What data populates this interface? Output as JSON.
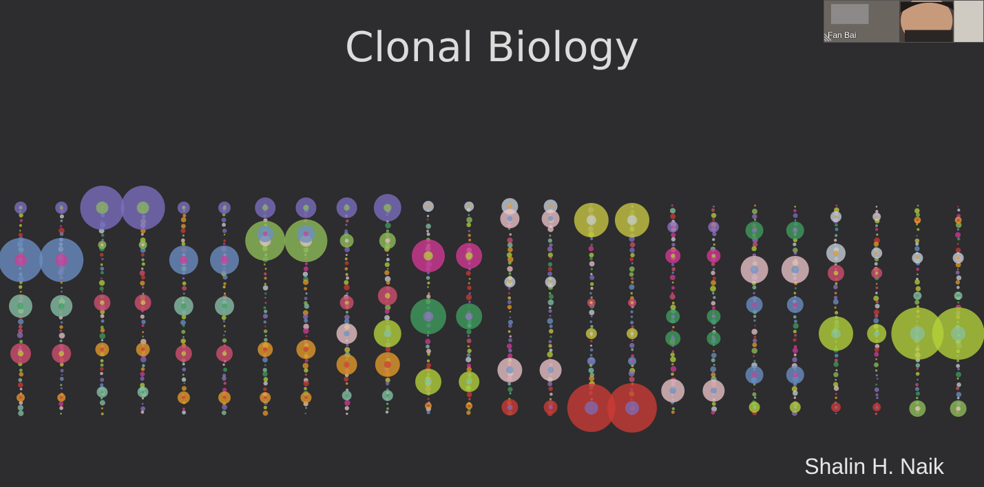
{
  "slide": {
    "title": "Clonal Biology",
    "author": "Shalin H. Naik"
  },
  "video": {
    "participant_name": "Fan Bai"
  },
  "icons": [
    "video-feed",
    "resize-grip-icon"
  ],
  "colors": {
    "background": "#2d2c2e",
    "text": "#dcdcdc",
    "palette": [
      "#7b6fc0",
      "#6a90c4",
      "#86c1a6",
      "#d2506f",
      "#e49a2a",
      "#8fbf5a",
      "#d33a95",
      "#3f9e5f",
      "#c9c943",
      "#cc3b35",
      "#e8c3c8",
      "#b4d23a",
      "#8e73c0",
      "#c7d0d8"
    ]
  }
}
